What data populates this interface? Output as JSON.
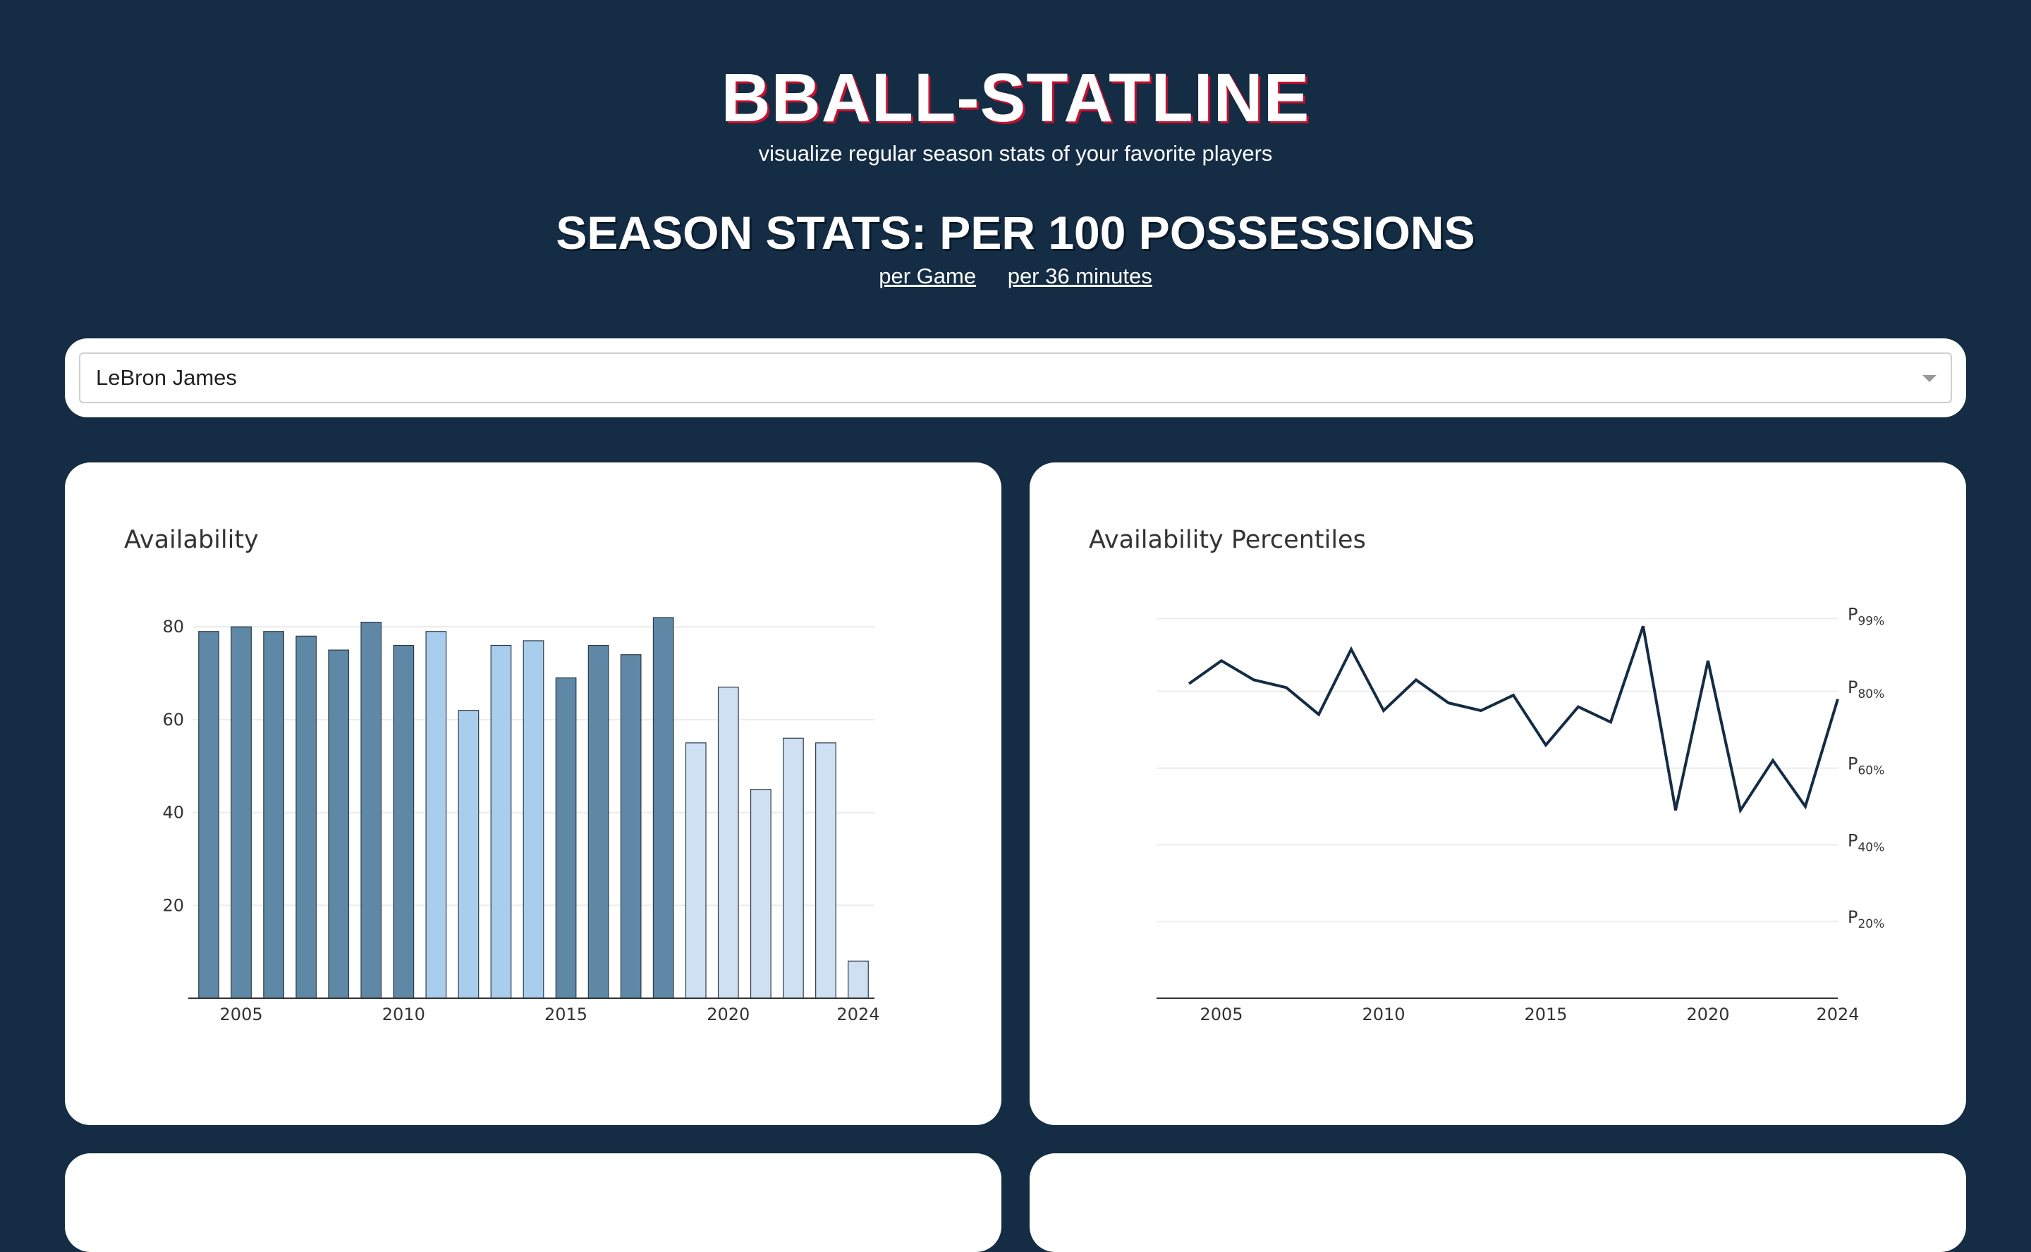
{
  "header": {
    "title": "BBALL-STATLINE",
    "subtitle": "visualize regular season stats of your favorite players"
  },
  "section": {
    "title": "SEASON STATS: PER 100 POSSESSIONS",
    "links": [
      "per Game",
      "per 36 minutes"
    ]
  },
  "player_select": {
    "value": "LeBron James"
  },
  "colors": {
    "page_bg": "#142c44",
    "accent": "#c8102e",
    "bar_dark": "#5f88a6",
    "bar_mid": "#a9cdec",
    "bar_light": "#cfe0f3",
    "line": "#142c44"
  },
  "chart_data": [
    {
      "type": "bar",
      "title": "Availability",
      "x": [
        2004,
        2005,
        2006,
        2007,
        2008,
        2009,
        2010,
        2011,
        2012,
        2013,
        2014,
        2015,
        2016,
        2017,
        2018,
        2019,
        2020,
        2021,
        2022,
        2023,
        2024
      ],
      "values": [
        79,
        80,
        79,
        78,
        75,
        81,
        76,
        79,
        62,
        76,
        77,
        69,
        76,
        74,
        82,
        55,
        67,
        45,
        56,
        55,
        8
      ],
      "shade": [
        "dark",
        "dark",
        "dark",
        "dark",
        "dark",
        "dark",
        "dark",
        "mid",
        "mid",
        "mid",
        "mid",
        "dark",
        "dark",
        "dark",
        "dark",
        "light",
        "light",
        "light",
        "light",
        "light",
        "light"
      ],
      "xticks": [
        2005,
        2010,
        2015,
        2020,
        2024
      ],
      "yticks": [
        20,
        40,
        60,
        80
      ],
      "xlim": [
        2003.5,
        2024.5
      ],
      "ylim": [
        0,
        82
      ],
      "grid": true
    },
    {
      "type": "line",
      "title": "Availability Percentiles",
      "x": [
        2004,
        2005,
        2006,
        2007,
        2008,
        2009,
        2010,
        2011,
        2012,
        2013,
        2014,
        2015,
        2016,
        2017,
        2018,
        2019,
        2020,
        2021,
        2022,
        2023,
        2024
      ],
      "values": [
        82,
        88,
        83,
        81,
        74,
        91,
        75,
        83,
        77,
        75,
        79,
        66,
        76,
        72,
        97,
        49,
        88,
        49,
        62,
        50,
        78
      ],
      "xticks": [
        2005,
        2010,
        2015,
        2020,
        2024
      ],
      "yticks": [
        {
          "value": 20,
          "prefix": "P",
          "sub": "20%"
        },
        {
          "value": 40,
          "prefix": "P",
          "sub": "40%"
        },
        {
          "value": 60,
          "prefix": "P",
          "sub": "60%"
        },
        {
          "value": 80,
          "prefix": "P",
          "sub": "80%"
        },
        {
          "value": 99,
          "prefix": "P",
          "sub": "99%"
        }
      ],
      "xlim": [
        2003,
        2024
      ],
      "ylim": [
        0,
        100
      ],
      "grid": true
    }
  ]
}
